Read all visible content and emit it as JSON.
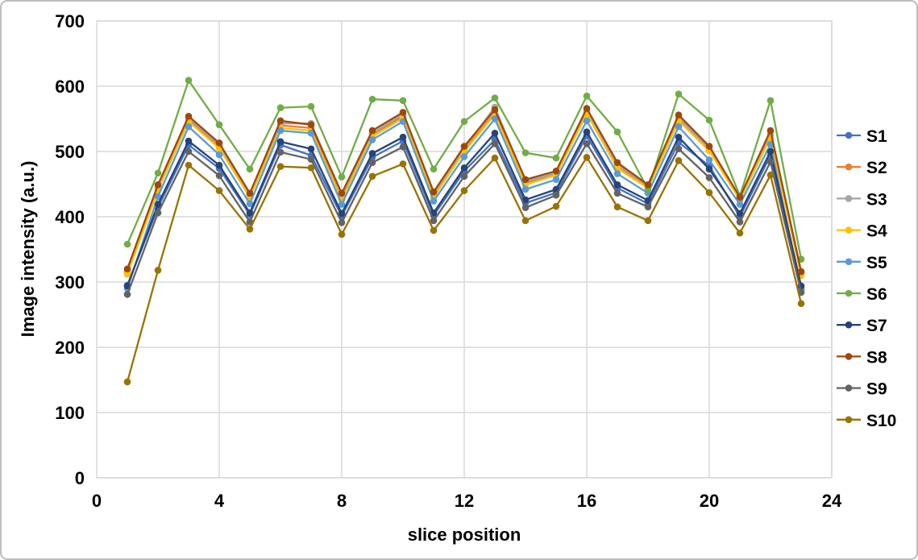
{
  "chart_data": {
    "type": "line",
    "title": "",
    "xlabel": "slice position",
    "ylabel": "Image intensity (a.u.)",
    "xlim": [
      0,
      24
    ],
    "ylim": [
      0,
      700
    ],
    "x_ticks": [
      0,
      4,
      8,
      12,
      16,
      20,
      24
    ],
    "y_ticks": [
      0,
      100,
      200,
      300,
      400,
      500,
      600,
      700
    ],
    "grid": true,
    "legend_position": "right",
    "x": [
      1,
      2,
      3,
      4,
      5,
      6,
      7,
      8,
      9,
      10,
      11,
      12,
      13,
      14,
      15,
      16,
      17,
      18,
      19,
      20,
      21,
      22,
      23
    ],
    "series": [
      {
        "name": "S1",
        "color": "#4472C4",
        "values": [
          295,
          414,
          510,
          474,
          403,
          510,
          494,
          401,
          491,
          516,
          402,
          470,
          518,
          421,
          437,
          524,
          444,
          420,
          514,
          478,
          400,
          494,
          289
        ]
      },
      {
        "name": "S2",
        "color": "#ED7D31",
        "values": [
          316,
          444,
          549,
          508,
          432,
          540,
          536,
          430,
          526,
          554,
          433,
          503,
          559,
          452,
          465,
          560,
          478,
          446,
          549,
          503,
          428,
          524,
          313
        ]
      },
      {
        "name": "S3",
        "color": "#A5A5A5",
        "values": [
          313,
          446,
          551,
          510,
          434,
          543,
          543,
          433,
          528,
          557,
          435,
          505,
          568,
          454,
          467,
          562,
          480,
          447,
          552,
          505,
          429,
          527,
          311
        ]
      },
      {
        "name": "S4",
        "color": "#FFC000",
        "values": [
          312,
          441,
          546,
          505,
          430,
          536,
          532,
          426,
          523,
          551,
          430,
          500,
          557,
          449,
          464,
          558,
          474,
          444,
          547,
          501,
          426,
          521,
          310
        ]
      },
      {
        "name": "S5",
        "color": "#5B9BD5",
        "values": [
          290,
          431,
          538,
          495,
          420,
          532,
          528,
          419,
          518,
          546,
          424,
          492,
          550,
          442,
          457,
          547,
          466,
          436,
          538,
          487,
          419,
          511,
          287
        ]
      },
      {
        "name": "S6",
        "color": "#70AD47",
        "values": [
          358,
          467,
          609,
          541,
          473,
          567,
          569,
          461,
          580,
          578,
          473,
          546,
          582,
          498,
          490,
          585,
          530,
          442,
          588,
          548,
          432,
          578,
          335
        ]
      },
      {
        "name": "S7",
        "color": "#264478",
        "values": [
          294,
          419,
          516,
          479,
          406,
          515,
          504,
          405,
          497,
          522,
          406,
          475,
          528,
          426,
          442,
          530,
          449,
          425,
          522,
          473,
          405,
          500,
          294
        ]
      },
      {
        "name": "S8",
        "color": "#9E480E",
        "values": [
          320,
          449,
          554,
          513,
          436,
          547,
          541,
          436,
          532,
          560,
          438,
          508,
          564,
          457,
          470,
          566,
          483,
          449,
          556,
          508,
          430,
          532,
          316
        ]
      },
      {
        "name": "S9",
        "color": "#636363",
        "values": [
          281,
          406,
          500,
          463,
          392,
          499,
          488,
          391,
          483,
          507,
          394,
          462,
          512,
          414,
          433,
          512,
          436,
          415,
          504,
          460,
          392,
          484,
          284
        ]
      },
      {
        "name": "S10",
        "color": "#997300",
        "values": [
          147,
          318,
          479,
          440,
          381,
          477,
          475,
          373,
          462,
          481,
          379,
          440,
          490,
          394,
          416,
          491,
          415,
          394,
          486,
          437,
          375,
          464,
          267
        ]
      }
    ]
  },
  "style": {
    "gridline_color": "#D9D9D9",
    "plot_border_color": "#D9D9D9",
    "figure_border_color": "#BDBDBD",
    "background": "#FFFFFF",
    "text_color": "#000000"
  }
}
